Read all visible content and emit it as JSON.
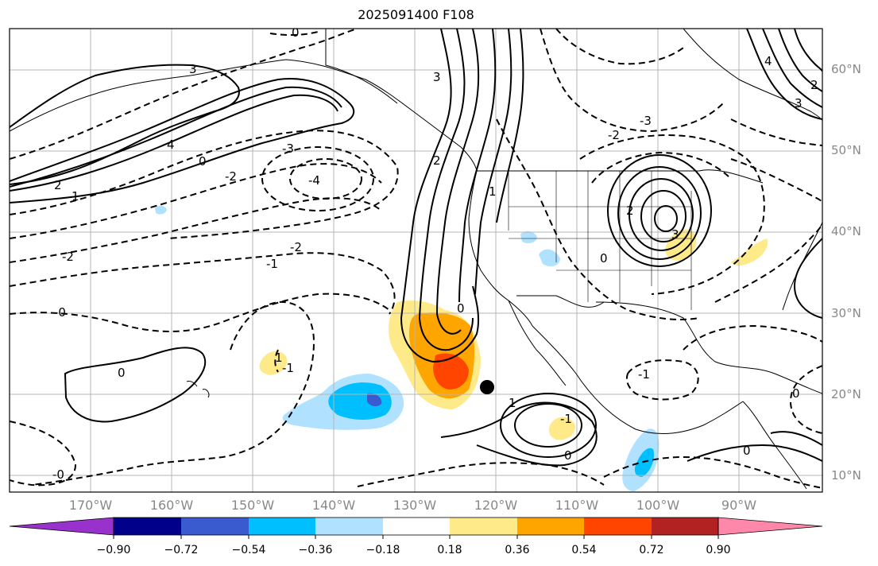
{
  "title": "2025091400 F108",
  "map": {
    "projection": "cylindrical",
    "region": "Northeast Pacific / North America",
    "lat_labels": [
      "60°N",
      "50°N",
      "40°N",
      "30°N",
      "20°N",
      "10°N"
    ],
    "lon_labels": [
      "170°W",
      "160°W",
      "150°W",
      "140°W",
      "130°W",
      "120°W",
      "110°W",
      "100°W",
      "90°W"
    ],
    "contour_labels_solid": [
      "3",
      "4",
      "2",
      "1",
      "3",
      "2",
      "1",
      "2",
      "3",
      "4",
      "3",
      "2",
      "1",
      "0",
      "0",
      "1",
      "0",
      "0"
    ],
    "contour_labels_dashed": [
      "0",
      "-2",
      "-3",
      "-4",
      "-2",
      "-1",
      "-2",
      "-3",
      "-2",
      "-1",
      "0",
      "-1",
      "-1",
      "0",
      "0",
      "-0",
      "-0"
    ],
    "storm_marker": "filled-circle"
  },
  "colorbar": {
    "ticks": [
      "−0.90",
      "−0.72",
      "−0.54",
      "−0.36",
      "−0.18",
      "0.18",
      "0.36",
      "0.54",
      "0.72",
      "0.90"
    ],
    "colors": [
      "#9932cc",
      "#00008b",
      "#3a5bd0",
      "#00bfff",
      "#b0e2ff",
      "#ffffff",
      "#ffea8a",
      "#ffa500",
      "#ff4500",
      "#b22222",
      "#ff88aa"
    ]
  }
}
